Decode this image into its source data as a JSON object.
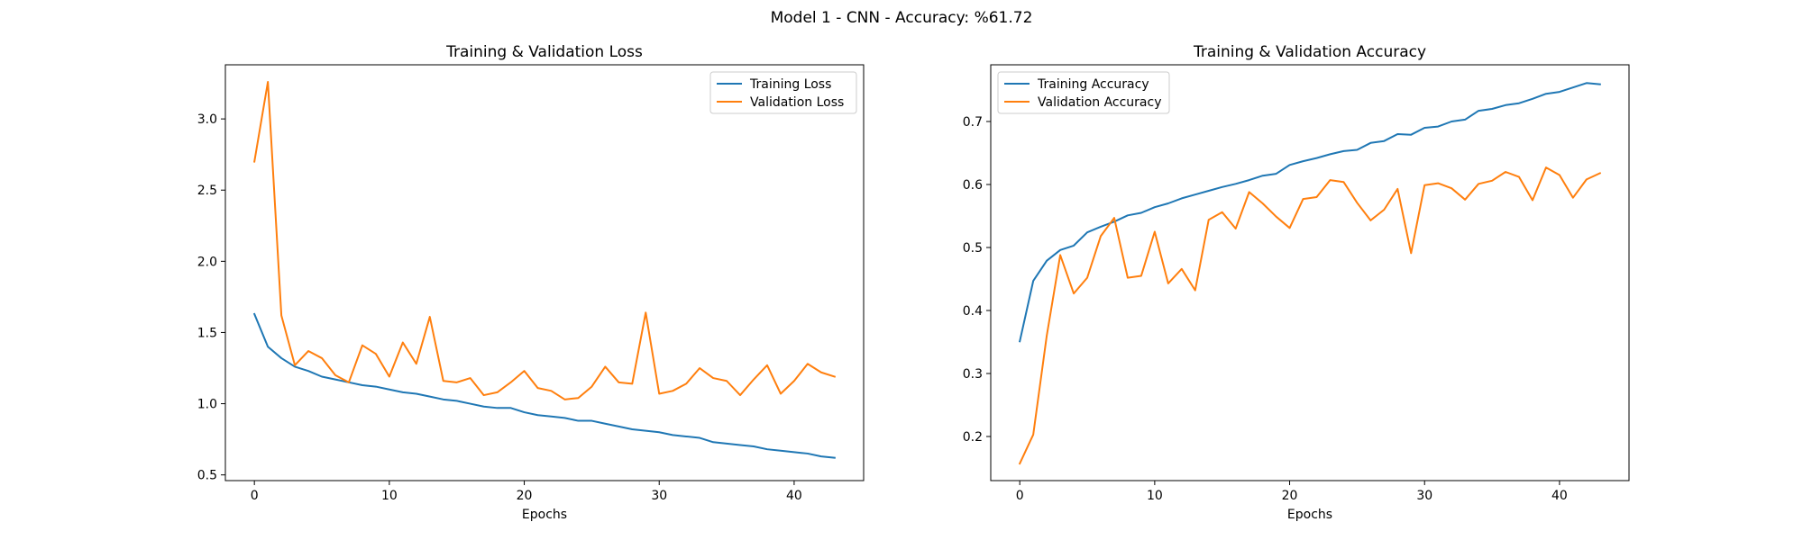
{
  "figure": {
    "suptitle": "Model 1 - CNN - Accuracy: %61.72"
  },
  "colors": {
    "training": "#1f77b4",
    "validation": "#ff7f0e",
    "axes": "#000000",
    "background": "#ffffff"
  },
  "chart_data": [
    {
      "type": "line",
      "title": "Training & Validation Loss",
      "xlabel": "Epochs",
      "ylabel": "",
      "xlim": [
        -2.15,
        45.15
      ],
      "ylim": [
        0.46,
        3.38
      ],
      "xticks": [
        0,
        10,
        20,
        30,
        40
      ],
      "yticks": [
        0.5,
        1.0,
        1.5,
        2.0,
        2.5,
        3.0
      ],
      "ytick_labels": [
        "0.5",
        "1.0",
        "1.5",
        "2.0",
        "2.5",
        "3.0"
      ],
      "grid": false,
      "legend_position": "upper right",
      "x": [
        0,
        1,
        2,
        3,
        4,
        5,
        6,
        7,
        8,
        9,
        10,
        11,
        12,
        13,
        14,
        15,
        16,
        17,
        18,
        19,
        20,
        21,
        22,
        23,
        24,
        25,
        26,
        27,
        28,
        29,
        30,
        31,
        32,
        33,
        34,
        35,
        36,
        37,
        38,
        39,
        40,
        41,
        42,
        43
      ],
      "series": [
        {
          "name": "Training Loss",
          "color": "#1f77b4",
          "values": [
            1.63,
            1.4,
            1.32,
            1.26,
            1.23,
            1.19,
            1.17,
            1.15,
            1.13,
            1.12,
            1.1,
            1.08,
            1.07,
            1.05,
            1.03,
            1.02,
            1.0,
            0.98,
            0.97,
            0.97,
            0.94,
            0.92,
            0.91,
            0.9,
            0.88,
            0.88,
            0.86,
            0.84,
            0.82,
            0.81,
            0.8,
            0.78,
            0.77,
            0.76,
            0.73,
            0.72,
            0.71,
            0.7,
            0.68,
            0.67,
            0.66,
            0.65,
            0.63,
            0.62
          ]
        },
        {
          "name": "Validation Loss",
          "color": "#ff7f0e",
          "values": [
            2.7,
            3.26,
            1.62,
            1.27,
            1.37,
            1.32,
            1.2,
            1.15,
            1.41,
            1.35,
            1.19,
            1.43,
            1.28,
            1.61,
            1.16,
            1.15,
            1.18,
            1.06,
            1.08,
            1.15,
            1.23,
            1.11,
            1.09,
            1.03,
            1.04,
            1.12,
            1.26,
            1.15,
            1.14,
            1.64,
            1.07,
            1.09,
            1.14,
            1.25,
            1.18,
            1.16,
            1.06,
            1.17,
            1.27,
            1.07,
            1.16,
            1.28,
            1.22,
            1.19
          ]
        }
      ]
    },
    {
      "type": "line",
      "title": "Training & Validation Accuracy",
      "xlabel": "Epochs",
      "ylabel": "",
      "xlim": [
        -2.15,
        45.15
      ],
      "ylim": [
        0.13,
        0.79
      ],
      "xticks": [
        0,
        10,
        20,
        30,
        40
      ],
      "yticks": [
        0.2,
        0.3,
        0.4,
        0.5,
        0.6,
        0.7
      ],
      "ytick_labels": [
        "0.2",
        "0.3",
        "0.4",
        "0.5",
        "0.6",
        "0.7"
      ],
      "grid": false,
      "legend_position": "upper left",
      "x": [
        0,
        1,
        2,
        3,
        4,
        5,
        6,
        7,
        8,
        9,
        10,
        11,
        12,
        13,
        14,
        15,
        16,
        17,
        18,
        19,
        20,
        21,
        22,
        23,
        24,
        25,
        26,
        27,
        28,
        29,
        30,
        31,
        32,
        33,
        34,
        35,
        36,
        37,
        38,
        39,
        40,
        41,
        42,
        43
      ],
      "series": [
        {
          "name": "Training Accuracy",
          "color": "#1f77b4",
          "values": [
            0.351,
            0.447,
            0.479,
            0.496,
            0.503,
            0.524,
            0.533,
            0.541,
            0.551,
            0.555,
            0.564,
            0.57,
            0.578,
            0.584,
            0.59,
            0.596,
            0.601,
            0.607,
            0.614,
            0.617,
            0.631,
            0.637,
            0.642,
            0.648,
            0.653,
            0.655,
            0.666,
            0.669,
            0.68,
            0.679,
            0.69,
            0.692,
            0.7,
            0.703,
            0.717,
            0.72,
            0.726,
            0.729,
            0.736,
            0.744,
            0.747,
            0.754,
            0.761,
            0.759
          ]
        },
        {
          "name": "Validation Accuracy",
          "color": "#ff7f0e",
          "values": [
            0.157,
            0.203,
            0.36,
            0.488,
            0.427,
            0.452,
            0.518,
            0.547,
            0.452,
            0.455,
            0.525,
            0.443,
            0.466,
            0.432,
            0.544,
            0.556,
            0.53,
            0.588,
            0.57,
            0.549,
            0.531,
            0.577,
            0.58,
            0.607,
            0.604,
            0.571,
            0.543,
            0.56,
            0.593,
            0.491,
            0.599,
            0.602,
            0.594,
            0.576,
            0.601,
            0.606,
            0.62,
            0.612,
            0.575,
            0.627,
            0.615,
            0.579,
            0.608,
            0.618
          ]
        }
      ]
    }
  ]
}
